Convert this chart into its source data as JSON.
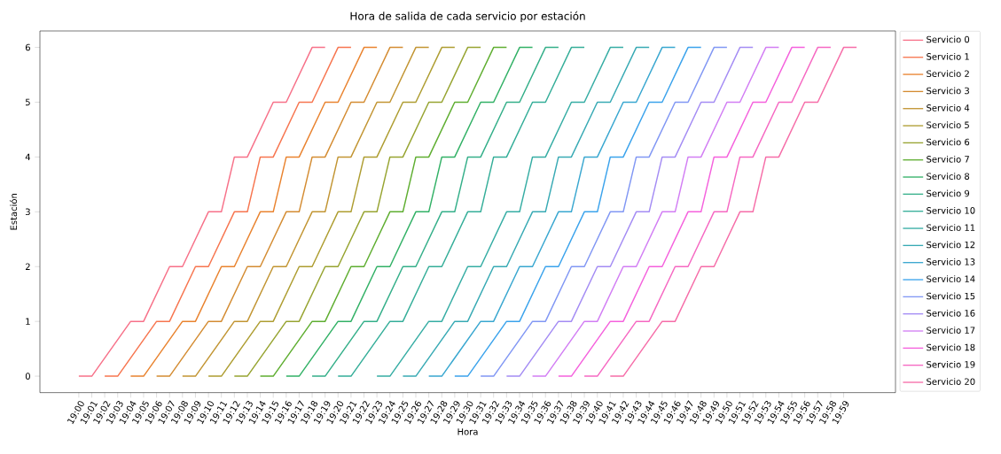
{
  "chart_data": {
    "type": "line",
    "title": "Hora de salida de cada servicio por estación",
    "xlabel": "Hora",
    "ylabel": "Estación",
    "xlim": [
      18.95,
      20.05
    ],
    "ylim": [
      -0.3,
      6.3
    ],
    "yticks": [
      0,
      1,
      2,
      3,
      4,
      5,
      6
    ],
    "legend": "top right",
    "line_style": "solid",
    "xticks": [
      {
        "value": 19,
        "label": "19:00"
      },
      {
        "value": 19.0167,
        "label": "19:01"
      },
      {
        "value": 19.0333,
        "label": "19:02"
      },
      {
        "value": 19.05,
        "label": "19:03"
      },
      {
        "value": 19.0667,
        "label": "19:04"
      },
      {
        "value": 19.0833,
        "label": "19:05"
      },
      {
        "value": 19.1,
        "label": "19:06"
      },
      {
        "value": 19.1167,
        "label": "19:07"
      },
      {
        "value": 19.1333,
        "label": "19:08"
      },
      {
        "value": 19.15,
        "label": "19:09"
      },
      {
        "value": 19.1667,
        "label": "19:10"
      },
      {
        "value": 19.1833,
        "label": "19:11"
      },
      {
        "value": 19.2,
        "label": "19:12"
      },
      {
        "value": 19.2167,
        "label": "19:13"
      },
      {
        "value": 19.2333,
        "label": "19:14"
      },
      {
        "value": 19.25,
        "label": "19:15"
      },
      {
        "value": 19.2667,
        "label": "19:16"
      },
      {
        "value": 19.2833,
        "label": "19:17"
      },
      {
        "value": 19.3,
        "label": "19:18"
      },
      {
        "value": 19.3167,
        "label": "19:19"
      },
      {
        "value": 19.3333,
        "label": "19:20"
      },
      {
        "value": 19.35,
        "label": "19:21"
      },
      {
        "value": 19.3667,
        "label": "19:22"
      },
      {
        "value": 19.3833,
        "label": "19:23"
      },
      {
        "value": 19.4,
        "label": "19:24"
      },
      {
        "value": 19.4167,
        "label": "19:25"
      },
      {
        "value": 19.4333,
        "label": "19:26"
      },
      {
        "value": 19.45,
        "label": "19:27"
      },
      {
        "value": 19.4667,
        "label": "19:28"
      },
      {
        "value": 19.4833,
        "label": "19:29"
      },
      {
        "value": 19.5,
        "label": "19:30"
      },
      {
        "value": 19.5167,
        "label": "19:31"
      },
      {
        "value": 19.5333,
        "label": "19:32"
      },
      {
        "value": 19.55,
        "label": "19:33"
      },
      {
        "value": 19.5667,
        "label": "19:34"
      },
      {
        "value": 19.5833,
        "label": "19:35"
      },
      {
        "value": 19.6,
        "label": "19:36"
      },
      {
        "value": 19.6167,
        "label": "19:37"
      },
      {
        "value": 19.6333,
        "label": "19:38"
      },
      {
        "value": 19.65,
        "label": "19:39"
      },
      {
        "value": 19.6667,
        "label": "19:40"
      },
      {
        "value": 19.6833,
        "label": "19:41"
      },
      {
        "value": 19.7,
        "label": "19:42"
      },
      {
        "value": 19.7167,
        "label": "19:43"
      },
      {
        "value": 19.7333,
        "label": "19:44"
      },
      {
        "value": 19.75,
        "label": "19:45"
      },
      {
        "value": 19.7667,
        "label": "19:46"
      },
      {
        "value": 19.7833,
        "label": "19:47"
      },
      {
        "value": 19.8,
        "label": "19:48"
      },
      {
        "value": 19.8167,
        "label": "19:49"
      },
      {
        "value": 19.8333,
        "label": "19:50"
      },
      {
        "value": 19.85,
        "label": "19:51"
      },
      {
        "value": 19.8667,
        "label": "19:52"
      },
      {
        "value": 19.8833,
        "label": "19:53"
      },
      {
        "value": 19.9,
        "label": "19:54"
      },
      {
        "value": 19.9167,
        "label": "19:55"
      },
      {
        "value": 19.9333,
        "label": "19:56"
      },
      {
        "value": 19.95,
        "label": "19:57"
      },
      {
        "value": 19.9667,
        "label": "19:58"
      },
      {
        "value": 19.9833,
        "label": "19:59"
      }
    ],
    "series": [
      {
        "name": "Servicio 0",
        "color": "#f77189",
        "x": [
          19,
          19.0167,
          19.0667,
          19.0833,
          19.1167,
          19.1333,
          19.1667,
          19.1833,
          19.2,
          19.2167,
          19.25,
          19.2667,
          19.3,
          19.3167
        ],
        "values": [
          0,
          0,
          1,
          1,
          2,
          2,
          3,
          3,
          4,
          4,
          5,
          5,
          6,
          6
        ]
      },
      {
        "name": "Servicio 1",
        "color": "#f7754f",
        "x": [
          19.0333,
          19.05,
          19.1,
          19.1167,
          19.15,
          19.1667,
          19.2,
          19.2167,
          19.2333,
          19.25,
          19.2833,
          19.3,
          19.3333,
          19.35
        ],
        "values": [
          0,
          0,
          1,
          1,
          2,
          2,
          3,
          3,
          4,
          4,
          5,
          5,
          6,
          6
        ]
      },
      {
        "name": "Servicio 2",
        "color": "#e9832f",
        "x": [
          19.0667,
          19.0833,
          19.1333,
          19.15,
          19.1833,
          19.2,
          19.2333,
          19.25,
          19.2667,
          19.2833,
          19.3167,
          19.3333,
          19.3667,
          19.3833
        ],
        "values": [
          0,
          0,
          1,
          1,
          2,
          2,
          3,
          3,
          4,
          4,
          5,
          5,
          6,
          6
        ]
      },
      {
        "name": "Servicio 3",
        "color": "#d48c32",
        "x": [
          19.1,
          19.1167,
          19.1667,
          19.1833,
          19.2167,
          19.2333,
          19.2667,
          19.2833,
          19.3,
          19.3167,
          19.35,
          19.3667,
          19.4,
          19.4167
        ],
        "values": [
          0,
          0,
          1,
          1,
          2,
          2,
          3,
          3,
          4,
          4,
          5,
          5,
          6,
          6
        ]
      },
      {
        "name": "Servicio 4",
        "color": "#c29533",
        "x": [
          19.1333,
          19.15,
          19.2,
          19.2167,
          19.25,
          19.2667,
          19.3,
          19.3167,
          19.3333,
          19.35,
          19.3833,
          19.4,
          19.4333,
          19.45
        ],
        "values": [
          0,
          0,
          1,
          1,
          2,
          2,
          3,
          3,
          4,
          4,
          5,
          5,
          6,
          6
        ]
      },
      {
        "name": "Servicio 5",
        "color": "#ae9d31",
        "x": [
          19.1667,
          19.1833,
          19.2333,
          19.25,
          19.2833,
          19.3,
          19.3333,
          19.35,
          19.3667,
          19.3833,
          19.4167,
          19.4333,
          19.4667,
          19.4833
        ],
        "values": [
          0,
          0,
          1,
          1,
          2,
          2,
          3,
          3,
          4,
          4,
          5,
          5,
          6,
          6
        ]
      },
      {
        "name": "Servicio 6",
        "color": "#97a431",
        "x": [
          19.2,
          19.2167,
          19.2667,
          19.2833,
          19.3167,
          19.3333,
          19.3667,
          19.3833,
          19.4,
          19.4167,
          19.45,
          19.4667,
          19.5,
          19.5167
        ],
        "values": [
          0,
          0,
          1,
          1,
          2,
          2,
          3,
          3,
          4,
          4,
          5,
          5,
          6,
          6
        ]
      },
      {
        "name": "Servicio 7",
        "color": "#5fae31",
        "x": [
          19.2333,
          19.25,
          19.3,
          19.3167,
          19.35,
          19.3667,
          19.4,
          19.4167,
          19.4333,
          19.45,
          19.4833,
          19.5,
          19.5333,
          19.55
        ],
        "values": [
          0,
          0,
          1,
          1,
          2,
          2,
          3,
          3,
          4,
          4,
          5,
          5,
          6,
          6
        ]
      },
      {
        "name": "Servicio 8",
        "color": "#32b166",
        "x": [
          19.2667,
          19.2833,
          19.3333,
          19.35,
          19.3833,
          19.4,
          19.4333,
          19.45,
          19.4667,
          19.4833,
          19.5167,
          19.5333,
          19.5667,
          19.5833
        ],
        "values": [
          0,
          0,
          1,
          1,
          2,
          2,
          3,
          3,
          4,
          4,
          5,
          5,
          6,
          6
        ]
      },
      {
        "name": "Servicio 9",
        "color": "#34af89",
        "x": [
          19.3,
          19.3167,
          19.3667,
          19.3833,
          19.4167,
          19.4333,
          19.4667,
          19.4833,
          19.5,
          19.5167,
          19.55,
          19.5667,
          19.6,
          19.6167
        ],
        "values": [
          0,
          0,
          1,
          1,
          2,
          2,
          3,
          3,
          4,
          4,
          5,
          5,
          6,
          6
        ]
      },
      {
        "name": "Servicio 10",
        "color": "#35ae99",
        "x": [
          19.3333,
          19.35,
          19.4,
          19.4167,
          19.45,
          19.4667,
          19.5,
          19.5167,
          19.5333,
          19.55,
          19.5833,
          19.6,
          19.6333,
          19.65
        ],
        "values": [
          0,
          0,
          1,
          1,
          2,
          2,
          3,
          3,
          4,
          4,
          5,
          5,
          6,
          6
        ]
      },
      {
        "name": "Servicio 11",
        "color": "#36ada4",
        "x": [
          19.3833,
          19.4,
          19.45,
          19.4667,
          19.5,
          19.5167,
          19.55,
          19.5667,
          19.5833,
          19.6,
          19.6333,
          19.65,
          19.6833,
          19.7
        ],
        "values": [
          0,
          0,
          1,
          1,
          2,
          2,
          3,
          3,
          4,
          4,
          5,
          5,
          6,
          6
        ]
      },
      {
        "name": "Servicio 12",
        "color": "#38aab4",
        "x": [
          19.4167,
          19.4333,
          19.4833,
          19.5,
          19.5333,
          19.55,
          19.5833,
          19.6,
          19.6167,
          19.6333,
          19.6667,
          19.6833,
          19.7167,
          19.7333
        ],
        "values": [
          0,
          0,
          1,
          1,
          2,
          2,
          3,
          3,
          4,
          4,
          5,
          5,
          6,
          6
        ]
      },
      {
        "name": "Servicio 13",
        "color": "#39a7d0",
        "x": [
          19.45,
          19.4667,
          19.5167,
          19.5333,
          19.5667,
          19.5833,
          19.6167,
          19.6333,
          19.65,
          19.6667,
          19.7,
          19.7167,
          19.75,
          19.7667
        ],
        "values": [
          0,
          0,
          1,
          1,
          2,
          2,
          3,
          3,
          4,
          4,
          5,
          5,
          6,
          6
        ]
      },
      {
        "name": "Servicio 14",
        "color": "#3ba3ec",
        "x": [
          19.4833,
          19.5,
          19.55,
          19.5667,
          19.6,
          19.6167,
          19.65,
          19.6667,
          19.6833,
          19.7,
          19.7333,
          19.75,
          19.7833,
          19.8
        ],
        "values": [
          0,
          0,
          1,
          1,
          2,
          2,
          3,
          3,
          4,
          4,
          5,
          5,
          6,
          6
        ]
      },
      {
        "name": "Servicio 15",
        "color": "#8197f4",
        "x": [
          19.5167,
          19.5333,
          19.5833,
          19.6,
          19.6333,
          19.65,
          19.6833,
          19.7,
          19.7167,
          19.7333,
          19.7667,
          19.7833,
          19.8167,
          19.8333
        ],
        "values": [
          0,
          0,
          1,
          1,
          2,
          2,
          3,
          3,
          4,
          4,
          5,
          5,
          6,
          6
        ]
      },
      {
        "name": "Servicio 16",
        "color": "#a48cf4",
        "x": [
          19.55,
          19.5667,
          19.6167,
          19.6333,
          19.6667,
          19.6833,
          19.7167,
          19.7333,
          19.75,
          19.7667,
          19.8,
          19.8167,
          19.85,
          19.8667
        ],
        "values": [
          0,
          0,
          1,
          1,
          2,
          2,
          3,
          3,
          4,
          4,
          5,
          5,
          6,
          6
        ]
      },
      {
        "name": "Servicio 17",
        "color": "#d27ef4",
        "x": [
          19.5833,
          19.6,
          19.65,
          19.6667,
          19.7,
          19.7167,
          19.75,
          19.7667,
          19.7833,
          19.8,
          19.8333,
          19.85,
          19.8833,
          19.9
        ],
        "values": [
          0,
          0,
          1,
          1,
          2,
          2,
          3,
          3,
          4,
          4,
          5,
          5,
          6,
          6
        ]
      },
      {
        "name": "Servicio 18",
        "color": "#f561dd",
        "x": [
          19.6167,
          19.6333,
          19.6833,
          19.7,
          19.7333,
          19.75,
          19.7833,
          19.8,
          19.8167,
          19.8333,
          19.8667,
          19.8833,
          19.9167,
          19.9333
        ],
        "values": [
          0,
          0,
          1,
          1,
          2,
          2,
          3,
          3,
          4,
          4,
          5,
          5,
          6,
          6
        ]
      },
      {
        "name": "Servicio 19",
        "color": "#f668c2",
        "x": [
          19.65,
          19.6667,
          19.7167,
          19.7333,
          19.7667,
          19.7833,
          19.8167,
          19.8333,
          19.85,
          19.8667,
          19.9,
          19.9167,
          19.95,
          19.9667
        ],
        "values": [
          0,
          0,
          1,
          1,
          2,
          2,
          3,
          3,
          4,
          4,
          5,
          5,
          6,
          6
        ]
      },
      {
        "name": "Servicio 20",
        "color": "#f66da8",
        "x": [
          19.6833,
          19.7,
          19.75,
          19.7667,
          19.8,
          19.8167,
          19.85,
          19.8667,
          19.8833,
          19.9,
          19.9333,
          19.95,
          19.9833,
          20
        ],
        "values": [
          0,
          0,
          1,
          1,
          2,
          2,
          3,
          3,
          4,
          4,
          5,
          5,
          6,
          6
        ]
      }
    ]
  }
}
